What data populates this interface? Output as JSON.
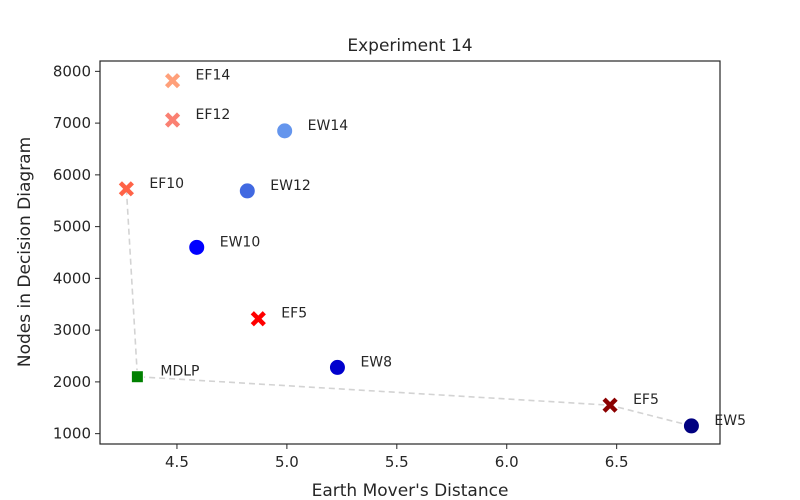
{
  "chart_data": {
    "type": "scatter",
    "title": "Experiment 14",
    "xlabel": "Earth Mover's Distance",
    "ylabel": "Nodes in Decision Diagram",
    "xlim": [
      4.15,
      6.97
    ],
    "ylim": [
      800,
      8200
    ],
    "xticks": [
      4.5,
      5.0,
      5.5,
      6.0,
      6.5
    ],
    "xtick_labels": [
      "4.5",
      "5.0",
      "5.5",
      "6.0",
      "6.5"
    ],
    "yticks": [
      1000,
      2000,
      3000,
      4000,
      5000,
      6000,
      7000,
      8000
    ],
    "ytick_labels": [
      "1000",
      "2000",
      "3000",
      "4000",
      "5000",
      "6000",
      "7000",
      "8000"
    ],
    "grid": false,
    "points": [
      {
        "label": "EF14",
        "x": 4.48,
        "y": 7820,
        "marker": "x",
        "color": "#ffa07a"
      },
      {
        "label": "EF12",
        "x": 4.48,
        "y": 7060,
        "marker": "x",
        "color": "#fa8072"
      },
      {
        "label": "EW14",
        "x": 4.99,
        "y": 6850,
        "marker": "circle",
        "color": "#6495ed"
      },
      {
        "label": "EW12",
        "x": 4.82,
        "y": 5690,
        "marker": "circle",
        "color": "#4169e1"
      },
      {
        "label": "EF10",
        "x": 4.27,
        "y": 5730,
        "marker": "x",
        "color": "#ff6347"
      },
      {
        "label": "EW10",
        "x": 4.59,
        "y": 4600,
        "marker": "circle",
        "color": "#0000ff"
      },
      {
        "label": "EF5",
        "x": 4.87,
        "y": 3220,
        "marker": "x",
        "color": "#ff0000"
      },
      {
        "label": "EW8",
        "x": 5.23,
        "y": 2280,
        "marker": "circle",
        "color": "#0000cd"
      },
      {
        "label": "MDLP",
        "x": 4.32,
        "y": 2100,
        "marker": "square",
        "color": "#008000"
      },
      {
        "label": "EF5",
        "x": 6.47,
        "y": 1550,
        "marker": "x",
        "color": "#8b0000"
      },
      {
        "label": "EW5",
        "x": 6.84,
        "y": 1150,
        "marker": "circle",
        "color": "#000080"
      }
    ],
    "frontier": {
      "line_style": "dashed",
      "color": "#d3d3d3",
      "x": [
        4.27,
        4.32,
        6.47,
        6.84
      ],
      "y": [
        5730,
        2100,
        1550,
        1150
      ]
    }
  }
}
